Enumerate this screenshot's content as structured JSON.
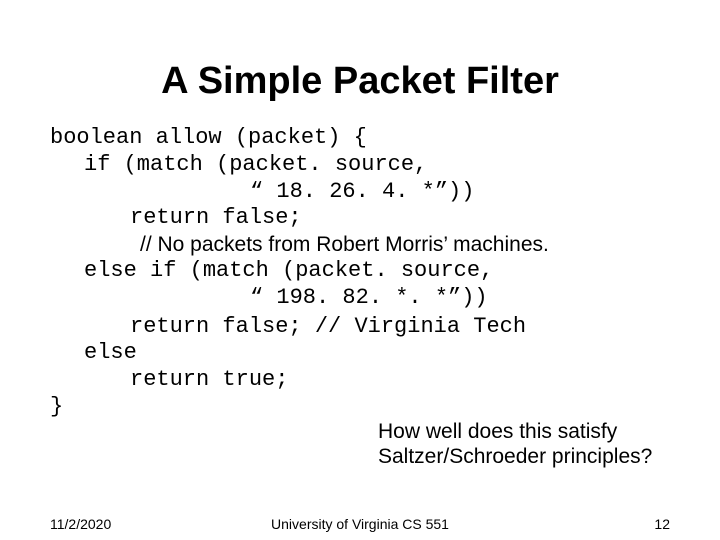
{
  "title": "A Simple Packet Filter",
  "code": {
    "l1": "boolean allow (packet) {",
    "l2": "if (match (packet. source,",
    "l3": "“ 18. 26. 4. *”))",
    "l4": "return false;",
    "comment1": "// No packets from Robert Morris’ machines.",
    "l5": "else if (match (packet. source,",
    "l6": "“ 198. 82. *. *”))",
    "l7_a": "return false; ",
    "l7_b": "// Virginia Tech",
    "l8": "else",
    "l9": "return true;",
    "l10": "}"
  },
  "question": "How well does this satisfy Saltzer/Schroeder principles?",
  "footer": {
    "date": "11/2/2020",
    "center": "University of Virginia CS 551",
    "page": "12"
  },
  "style": {
    "background": "#ffffff",
    "text_color": "#000000",
    "title_fontsize": 38,
    "body_fontsize": 22,
    "footer_fontsize": 14,
    "mono_font": "Courier New",
    "sans_font": "Arial"
  }
}
